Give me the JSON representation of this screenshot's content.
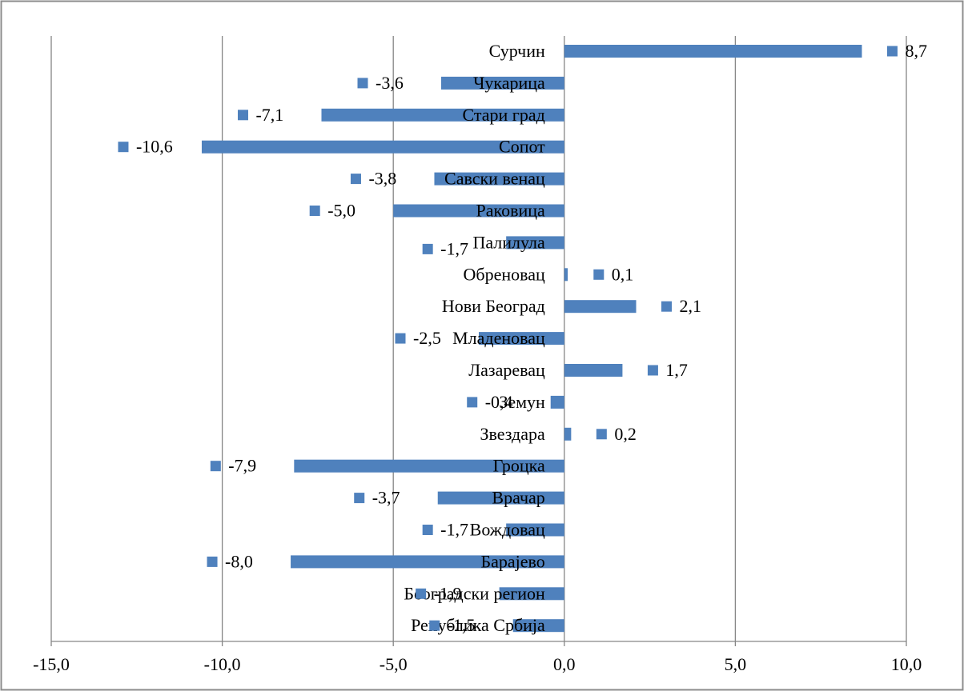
{
  "chart_data": {
    "type": "bar",
    "orientation": "horizontal",
    "title": "",
    "xlabel": "",
    "ylabel": "",
    "xlim": [
      -15,
      10
    ],
    "x_ticks": [
      -15,
      -10,
      -5,
      0,
      5,
      10
    ],
    "x_tick_labels": [
      "-15,0",
      "-10,0",
      "-5,0",
      "0,0",
      "5,0",
      "10,0"
    ],
    "grid": "vertical",
    "legend": "none",
    "colors": {
      "bar": "#4f81bd",
      "grid": "#868686",
      "frame": "#8c8c8c"
    },
    "categories": [
      "Сурчин",
      "Чукарица",
      "Стари град",
      "Сопот",
      "Савски венац",
      "Раковица",
      "Палилула",
      "Обреновац",
      "Нови Београд",
      "Младеновац",
      "Лазаревац",
      "Земун",
      "Звездара",
      "Гроцка",
      "Врачар",
      "Вождовац",
      "Барајево",
      "Београдски регион",
      "Република Србија"
    ],
    "values": [
      8.7,
      -3.6,
      -7.1,
      -10.6,
      -3.8,
      -5.0,
      -1.7,
      0.1,
      2.1,
      -2.5,
      1.7,
      -0.4,
      0.2,
      -7.9,
      -3.7,
      -1.7,
      -8.0,
      -1.9,
      -1.5
    ],
    "value_labels": [
      "8,7",
      "-3,6",
      "-7,1",
      "-10,6",
      "-3,8",
      "-5,0",
      "-1,7",
      "0,1",
      "2,1",
      "-2,5",
      "1,7",
      "-0,4",
      "0,2",
      "-7,9",
      "-3,7",
      "-1,7",
      "-8,0",
      "-1,9",
      "-1,5"
    ]
  }
}
